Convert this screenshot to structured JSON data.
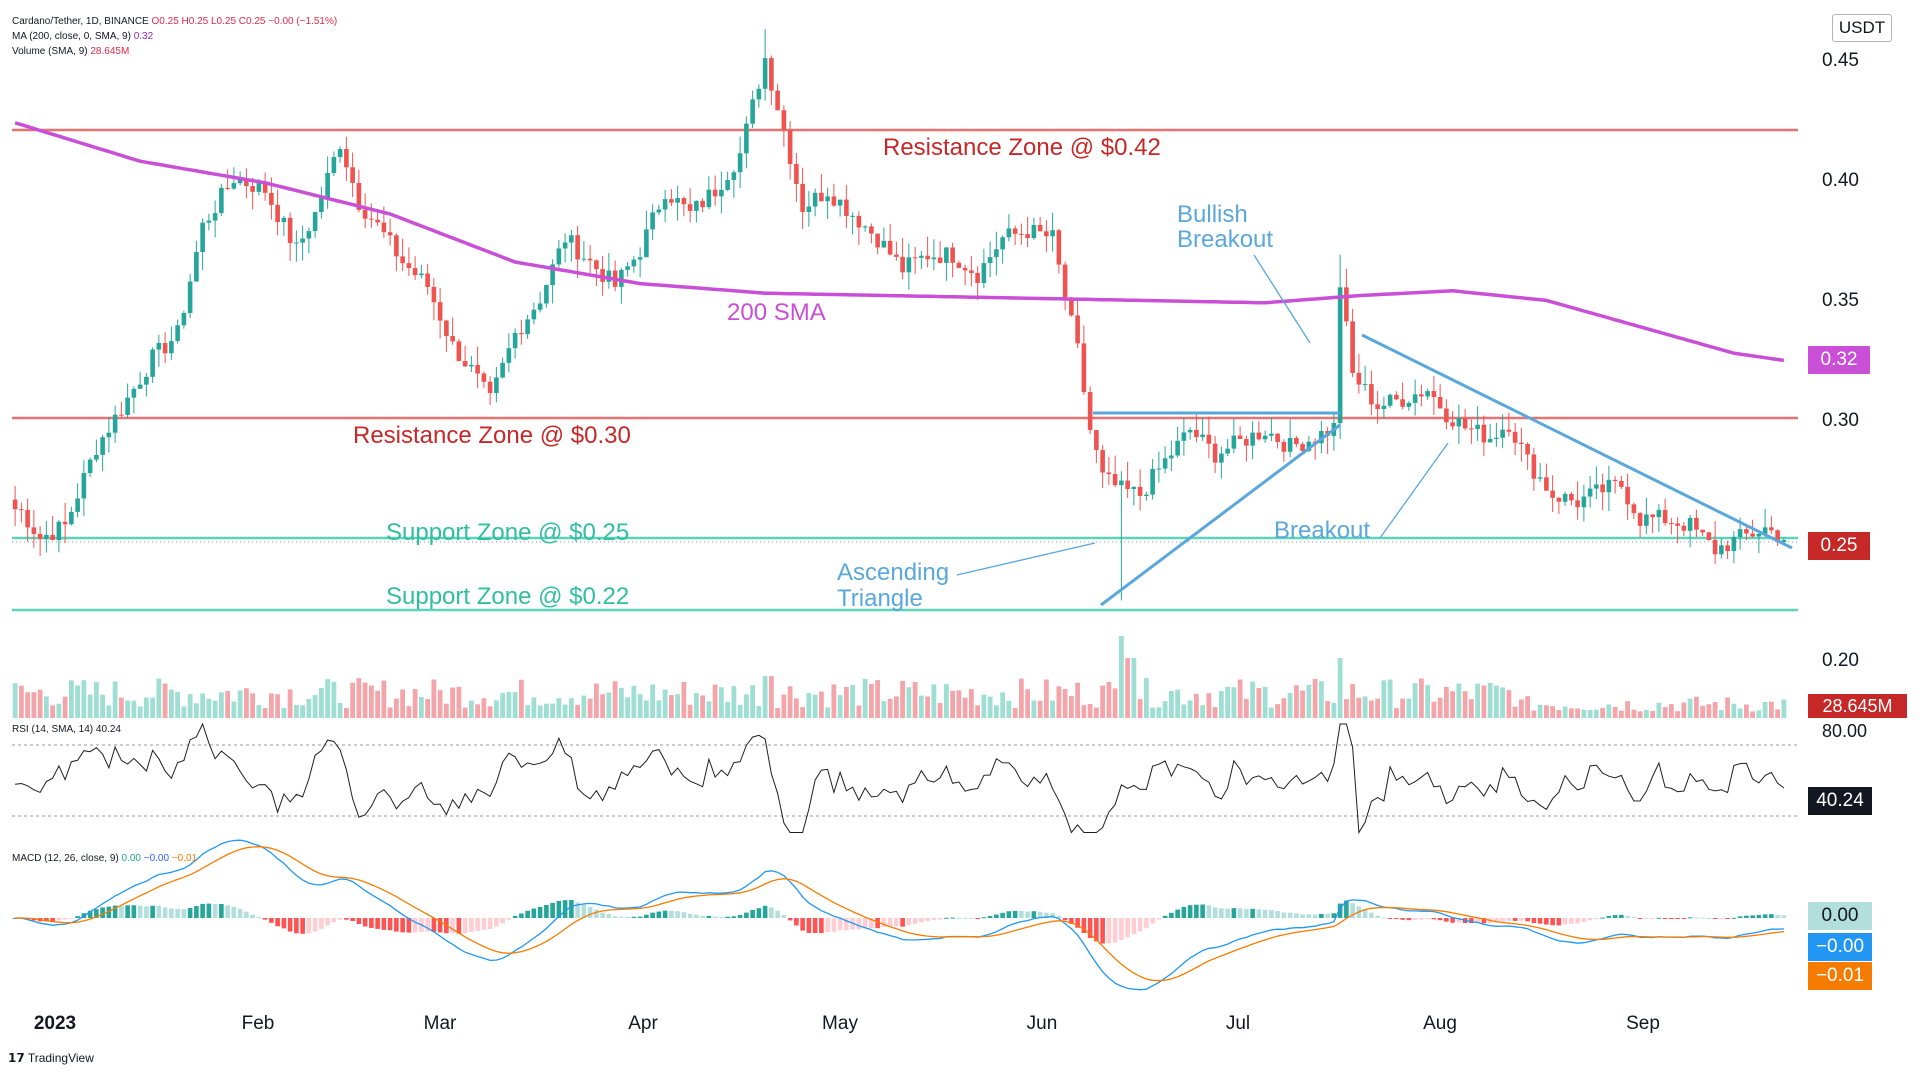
{
  "header": {
    "symbol": "Cardano/Tether, 1D, BINANCE",
    "ohlc": "O0.25 H0.25 L0.25 C0.25 −0.00 (−1.51%)",
    "ma_label": "MA (200, close, 0, SMA, 9)",
    "ma_value": "0.32",
    "vol_label": "Volume (SMA, 9)",
    "vol_value": "28.645M",
    "rsi_label": "RSI (14, SMA, 14)",
    "rsi_value": "40.24",
    "macd_label": "MACD (12, 26, close, 9)",
    "macd_v1": "0.00",
    "macd_v2": "−0.00",
    "macd_v3": "−0.01"
  },
  "currency": "USDT",
  "price_tags": {
    "ma": "0.32",
    "last": "0.25",
    "volume": "28.645M",
    "rsi": "40.24",
    "hist": "0.00",
    "macd": "−0.00",
    "signal": "−0.01"
  },
  "branding": "TradingView",
  "colors": {
    "up": "#26a69a",
    "down": "#ef5350",
    "ma": "#c94fd6",
    "resistance": "#e57373",
    "support": "#5fd3b9",
    "annotation_blue": "#5aa7dc",
    "resistance_text": "#c62828",
    "support_text": "#2fbfa0"
  },
  "chart_data": {
    "type": "candlestick",
    "symbol": "Cardano/Tether",
    "interval": "1D",
    "exchange": "BINANCE",
    "y_range": [
      0.18,
      0.46
    ],
    "y_ticks": [
      "0.45",
      "0.40",
      "0.35",
      "0.30",
      "0.25",
      "0.20"
    ],
    "x_labels": [
      "2023",
      "Feb",
      "Mar",
      "Apr",
      "May",
      "Jun",
      "Jul",
      "Aug",
      "Sep"
    ],
    "close_path": [
      [
        0,
        0.265
      ],
      [
        4,
        0.25
      ],
      [
        8,
        0.255
      ],
      [
        13,
        0.288
      ],
      [
        18,
        0.308
      ],
      [
        22,
        0.325
      ],
      [
        26,
        0.335
      ],
      [
        30,
        0.38
      ],
      [
        35,
        0.4
      ],
      [
        40,
        0.395
      ],
      [
        45,
        0.37
      ],
      [
        48,
        0.385
      ],
      [
        52,
        0.415
      ],
      [
        55,
        0.39
      ],
      [
        58,
        0.38
      ],
      [
        62,
        0.365
      ],
      [
        66,
        0.355
      ],
      [
        70,
        0.33
      ],
      [
        73,
        0.32
      ],
      [
        76,
        0.307
      ],
      [
        80,
        0.335
      ],
      [
        84,
        0.35
      ],
      [
        88,
        0.375
      ],
      [
        92,
        0.365
      ],
      [
        96,
        0.355
      ],
      [
        100,
        0.37
      ],
      [
        104,
        0.395
      ],
      [
        108,
        0.385
      ],
      [
        112,
        0.395
      ],
      [
        116,
        0.41
      ],
      [
        120,
        0.45
      ],
      [
        123,
        0.42
      ],
      [
        126,
        0.388
      ],
      [
        130,
        0.395
      ],
      [
        134,
        0.385
      ],
      [
        138,
        0.375
      ],
      [
        142,
        0.362
      ],
      [
        146,
        0.368
      ],
      [
        150,
        0.368
      ],
      [
        154,
        0.36
      ],
      [
        158,
        0.375
      ],
      [
        162,
        0.378
      ],
      [
        166,
        0.375
      ],
      [
        168,
        0.35
      ],
      [
        170,
        0.328
      ],
      [
        172,
        0.295
      ],
      [
        174,
        0.275
      ],
      [
        177,
        0.27
      ],
      [
        180,
        0.268
      ],
      [
        184,
        0.282
      ],
      [
        188,
        0.295
      ],
      [
        192,
        0.285
      ],
      [
        196,
        0.29
      ],
      [
        200,
        0.295
      ],
      [
        204,
        0.288
      ],
      [
        208,
        0.292
      ],
      [
        211,
        0.296
      ],
      [
        212,
        0.356
      ],
      [
        214,
        0.318
      ],
      [
        218,
        0.305
      ],
      [
        222,
        0.308
      ],
      [
        226,
        0.312
      ],
      [
        229,
        0.302
      ],
      [
        232,
        0.296
      ],
      [
        236,
        0.292
      ],
      [
        239,
        0.298
      ],
      [
        242,
        0.282
      ],
      [
        246,
        0.268
      ],
      [
        250,
        0.265
      ],
      [
        254,
        0.27
      ],
      [
        257,
        0.272
      ],
      [
        260,
        0.258
      ],
      [
        264,
        0.258
      ],
      [
        268,
        0.255
      ],
      [
        272,
        0.245
      ],
      [
        276,
        0.25
      ],
      [
        280,
        0.254
      ],
      [
        283,
        0.25
      ]
    ],
    "volume_last": "28.645M",
    "ma200": {
      "label": "200 SMA",
      "last": 0.32,
      "path": [
        [
          0,
          0.423
        ],
        [
          20,
          0.407
        ],
        [
          40,
          0.398
        ],
        [
          60,
          0.385
        ],
        [
          80,
          0.365
        ],
        [
          100,
          0.356
        ],
        [
          120,
          0.352
        ],
        [
          140,
          0.351
        ],
        [
          160,
          0.35
        ],
        [
          180,
          0.349
        ],
        [
          200,
          0.348
        ],
        [
          215,
          0.351
        ],
        [
          230,
          0.353
        ],
        [
          245,
          0.349
        ],
        [
          260,
          0.338
        ],
        [
          275,
          0.327
        ],
        [
          283,
          0.324
        ]
      ]
    },
    "rsi": {
      "value": 40.24,
      "upper": 70,
      "lower": 30,
      "tick": "80.00"
    },
    "macd": {
      "macd": 0.0,
      "signal": -0.01,
      "hist": 0.0
    },
    "levels": [
      {
        "label": "Resistance Zone @ $0.42",
        "value": 0.42,
        "kind": "resistance"
      },
      {
        "label": "Resistance Zone @ $0.30",
        "value": 0.3,
        "kind": "resistance"
      },
      {
        "label": "Support Zone @ $0.25",
        "value": 0.25,
        "kind": "support"
      },
      {
        "label": "Support Zone @ $0.22",
        "value": 0.22,
        "kind": "support"
      }
    ],
    "annotations": [
      {
        "text": "200 SMA"
      },
      {
        "text": "Bullish Breakout"
      },
      {
        "text": "Ascending Triangle"
      },
      {
        "text": "Breakout"
      }
    ]
  }
}
